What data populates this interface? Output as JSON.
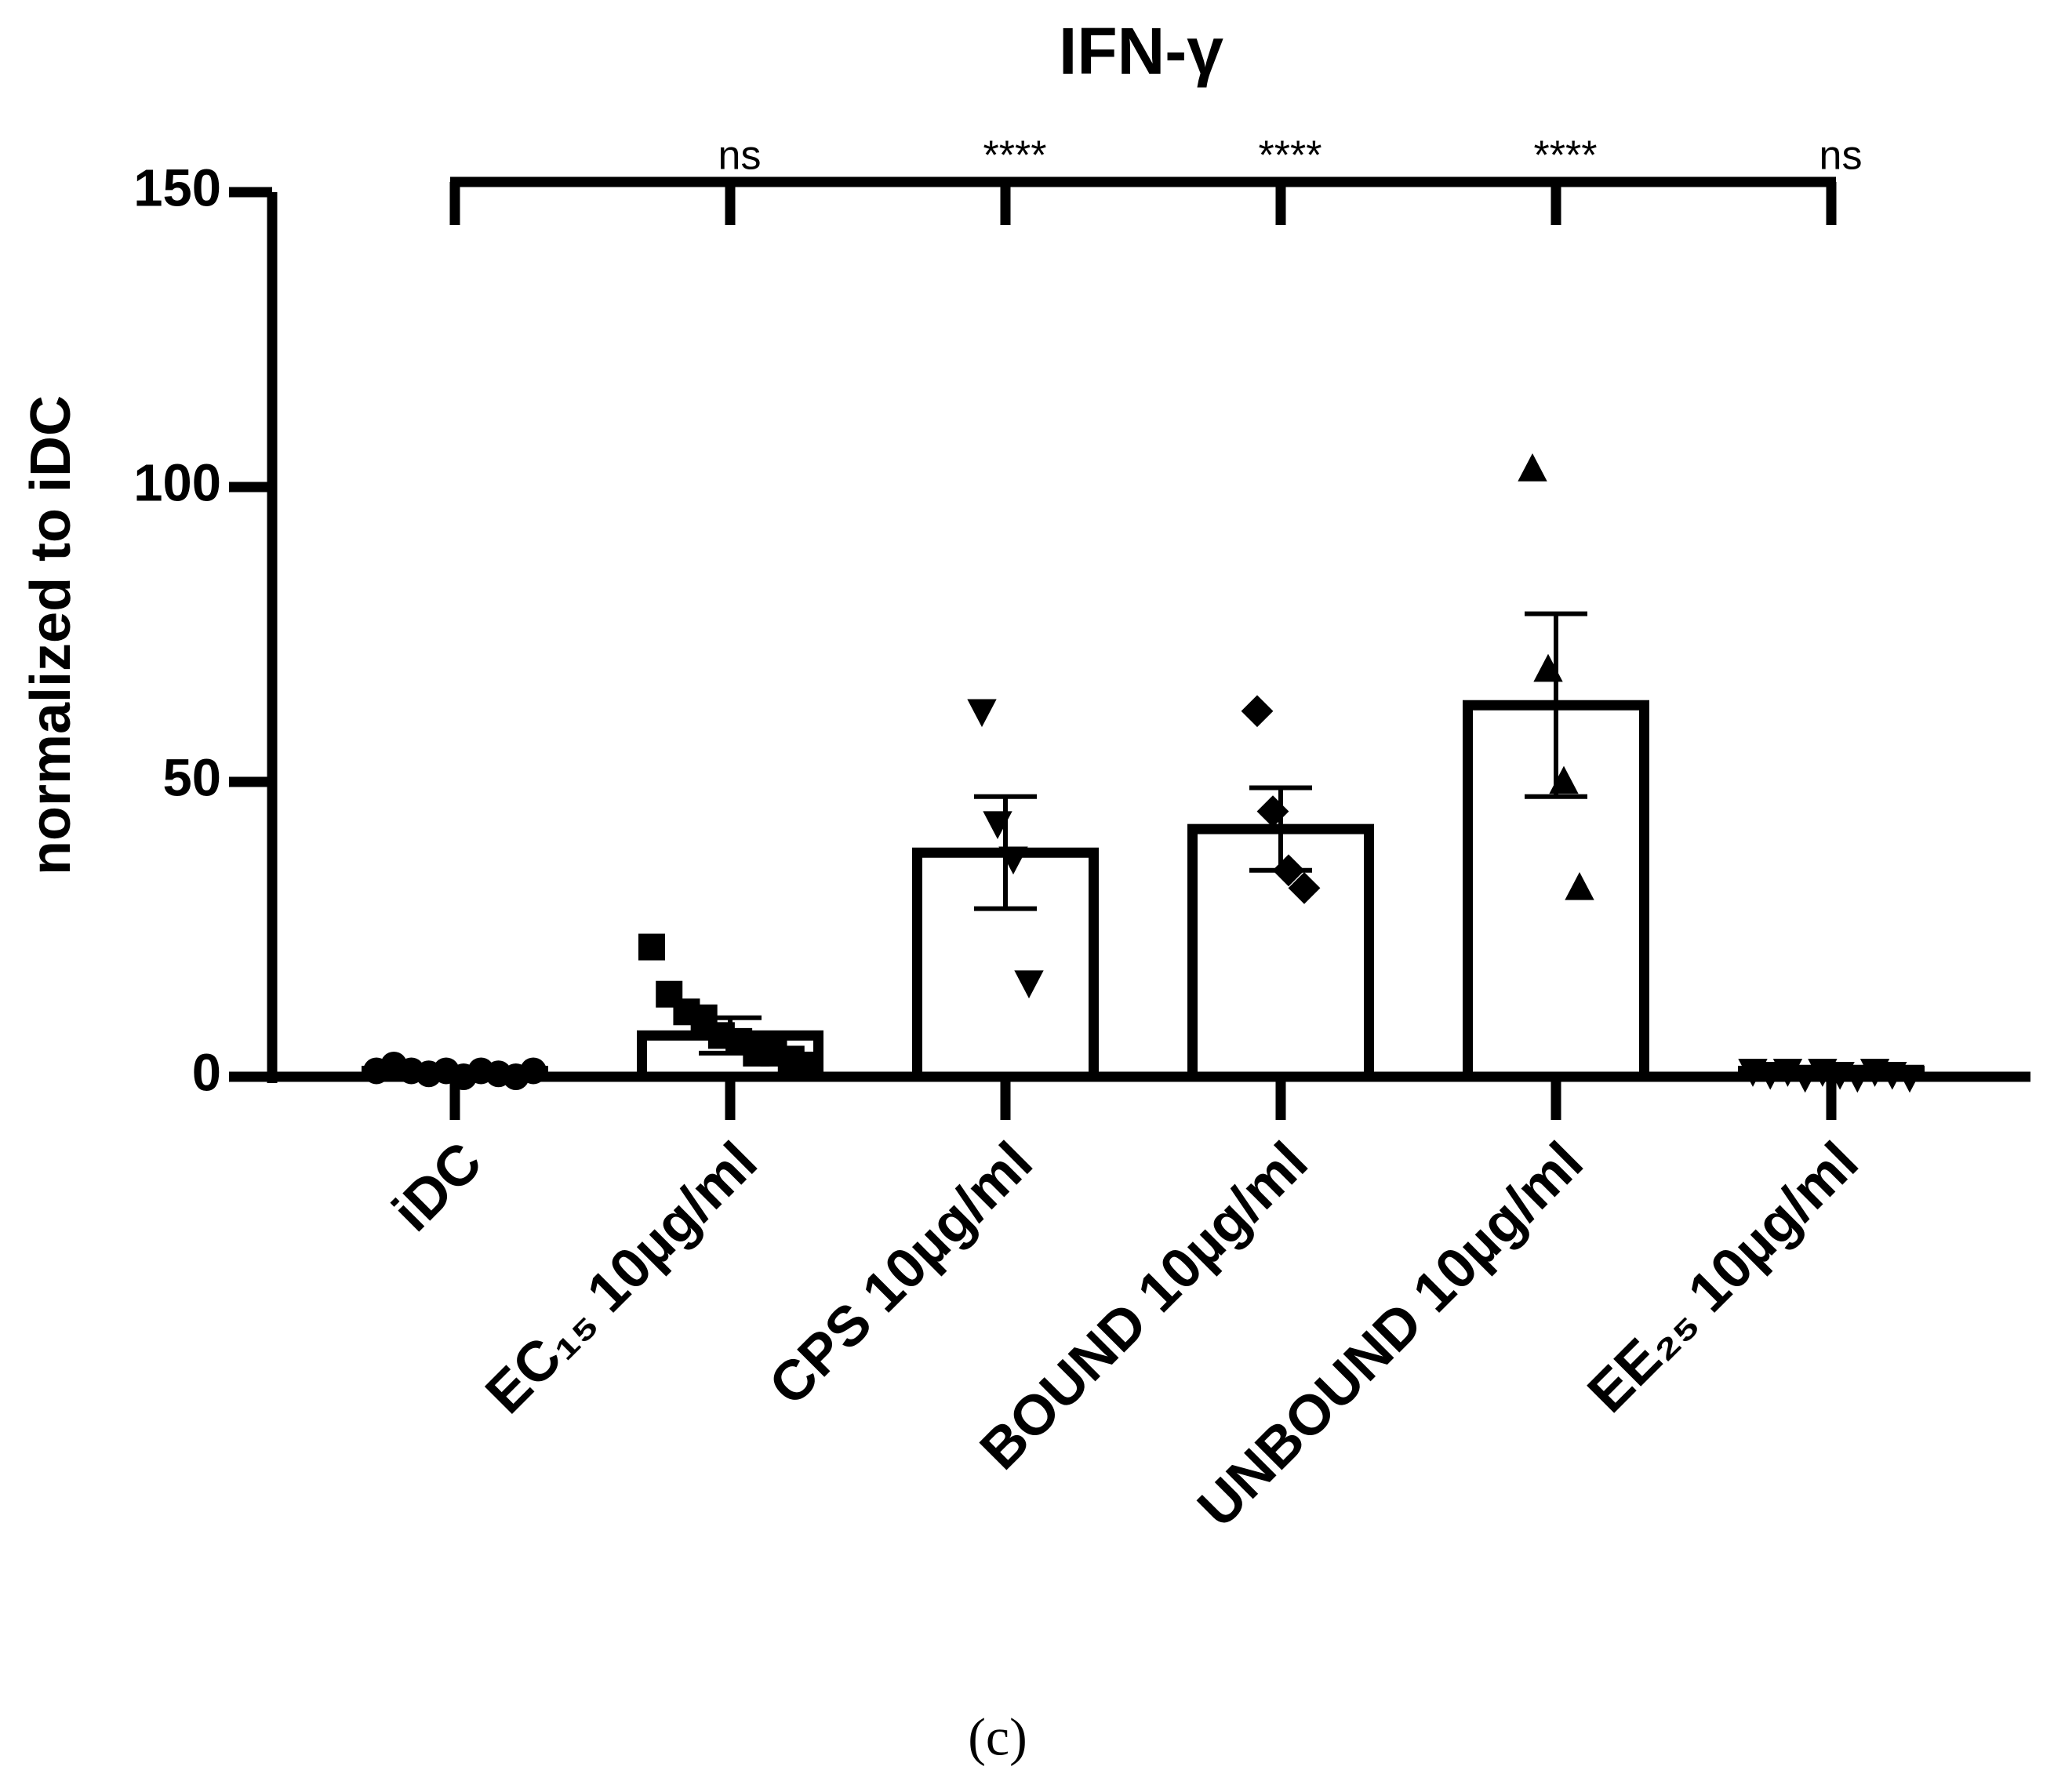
{
  "chart_data": {
    "type": "bar",
    "title": "IFN-γ",
    "y_label": "normalized to iDC",
    "caption": "(c)",
    "categories": [
      "iDC",
      "EC₁₅ 10µg/ml",
      "CPS 10µg/ml",
      "BOUND 10µg/ml",
      "UNBOUND 10µg/ml",
      "EE₂₅ 10µg/ml"
    ],
    "values": [
      1,
      7,
      38,
      42,
      63,
      1
    ],
    "errors": [
      null,
      3,
      9.5,
      7,
      15.5,
      null
    ],
    "points": [
      [
        1,
        2,
        1,
        0.5,
        1,
        0,
        1,
        0.5,
        0,
        1
      ],
      [
        22,
        14,
        11,
        10,
        7,
        6,
        4,
        4,
        3,
        2
      ],
      [
        62,
        43,
        37,
        16
      ],
      [
        62,
        45,
        35,
        32
      ],
      [
        103,
        69,
        50,
        32
      ],
      [
        1,
        0.5,
        1,
        0,
        1,
        0.5,
        0,
        1,
        0.5,
        0
      ]
    ],
    "markers": [
      "circle",
      "square",
      "triangle-down",
      "diamond",
      "triangle-up",
      "triangle-down"
    ],
    "significance": [
      null,
      "ns",
      "****",
      "****",
      "****",
      "ns"
    ],
    "color": "#ffffff",
    "ylim": [
      0,
      150
    ],
    "yticks": [
      0,
      50,
      100,
      150
    ]
  }
}
